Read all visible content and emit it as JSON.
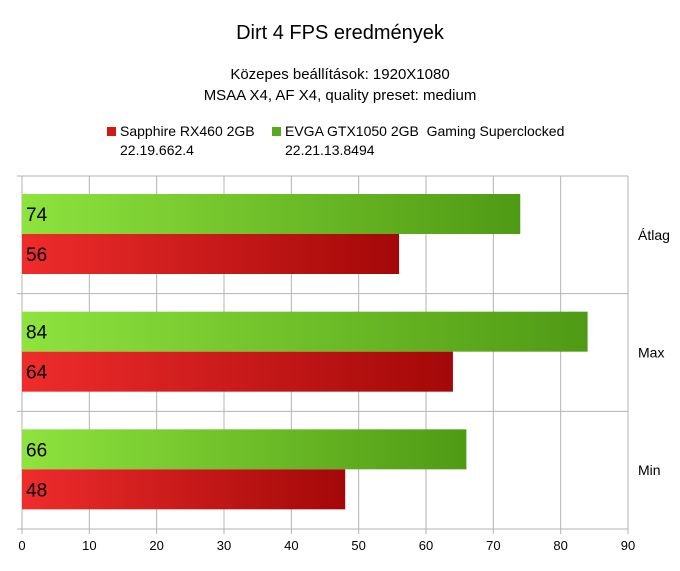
{
  "chart_data": {
    "type": "bar",
    "orientation": "horizontal",
    "title": "Dirt 4 FPS eredmények",
    "subtitle_lines": [
      "Közepes beállítások: 1920X1080",
      "MSAA X4, AF X4, quality preset: medium"
    ],
    "categories": [
      "Átlag",
      "Max",
      "Min"
    ],
    "series": [
      {
        "name": "EVGA GTX1050 2GB  Gaming Superclocked",
        "driver": "22.21.13.8494",
        "values": [
          74,
          84,
          66
        ],
        "color": "#5aa81e"
      },
      {
        "name": "Sapphire RX460 2GB",
        "driver": "22.19.662.4",
        "values": [
          56,
          64,
          48
        ],
        "color": "#d01818"
      }
    ],
    "xlim": [
      0,
      90
    ],
    "xticks": [
      0,
      10,
      20,
      30,
      40,
      50,
      60,
      70,
      80,
      90
    ],
    "grid": true,
    "legend_position": "top",
    "category_axis_side": "right",
    "data_labels": true
  }
}
